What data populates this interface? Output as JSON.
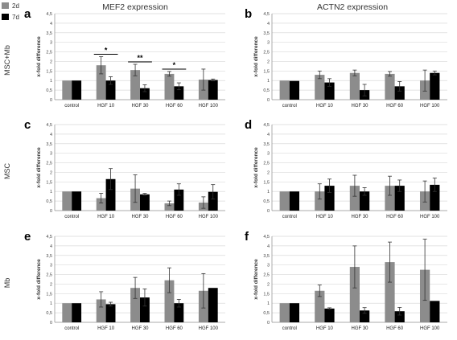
{
  "column_titles": [
    "MEF2 expression",
    "ACTN2 expression"
  ],
  "row_labels": [
    "MSC+Mb",
    "MSC",
    "Mb"
  ],
  "legend": [
    {
      "label": "2d",
      "color": "#8c8c8c"
    },
    {
      "label": "7d",
      "color": "#000000"
    }
  ],
  "colors": {
    "series_2d": "#8c8c8c",
    "series_7d": "#000000",
    "grid": "#d9d9d9"
  },
  "chart_data": [
    {
      "panel": "a",
      "type": "bar",
      "ylabel": "x-fold difference",
      "ylim": [
        0,
        4.5
      ],
      "yticks": [
        "0",
        "0,5",
        "1",
        "1,5",
        "2",
        "2,5",
        "3",
        "3,5",
        "4",
        "4,5"
      ],
      "categories": [
        "control",
        "HGF 10",
        "HGF 30",
        "HGF 60",
        "HGF 100"
      ],
      "series": [
        {
          "name": "2d",
          "values": [
            1.0,
            1.8,
            1.55,
            1.35,
            1.05
          ],
          "errors": [
            0.02,
            0.45,
            0.3,
            0.12,
            0.55
          ]
        },
        {
          "name": "7d",
          "values": [
            1.0,
            1.0,
            0.6,
            0.7,
            1.03
          ],
          "errors": [
            0.02,
            0.2,
            0.18,
            0.18,
            0.05
          ]
        }
      ],
      "significance": [
        {
          "category": "HGF 10",
          "label": "*"
        },
        {
          "category": "HGF 30",
          "label": "**"
        },
        {
          "category": "HGF 60",
          "label": "*"
        }
      ]
    },
    {
      "panel": "b",
      "type": "bar",
      "ylabel": "x-fold difference",
      "ylim": [
        0,
        4.5
      ],
      "yticks": [
        "0",
        "0,5",
        "1",
        "1,5",
        "2",
        "2,5",
        "3",
        "3,5",
        "4",
        "4,5"
      ],
      "categories": [
        "control",
        "HGF 10",
        "HGF 30",
        "HGF 60",
        "HGF 100"
      ],
      "series": [
        {
          "name": "2d",
          "values": [
            1.0,
            1.3,
            1.4,
            1.35,
            1.0
          ],
          "errors": [
            0.02,
            0.2,
            0.15,
            0.12,
            0.55
          ]
        },
        {
          "name": "7d",
          "values": [
            0.98,
            0.9,
            0.5,
            0.7,
            1.4
          ],
          "errors": [
            0.02,
            0.2,
            0.3,
            0.25,
            0.1
          ]
        }
      ]
    },
    {
      "panel": "c",
      "type": "bar",
      "ylabel": "x-fold difference",
      "ylim": [
        0,
        4.5
      ],
      "yticks": [
        "0",
        "0,5",
        "1",
        "1,5",
        "2",
        "2,5",
        "3",
        "3,5",
        "4",
        "4,5"
      ],
      "categories": [
        "control",
        "HGF 10",
        "HGF 30",
        "HGF 60",
        "HGF 100"
      ],
      "series": [
        {
          "name": "2d",
          "values": [
            1.0,
            0.65,
            1.15,
            0.38,
            0.42
          ],
          "errors": [
            0.02,
            0.25,
            0.72,
            0.12,
            0.3
          ]
        },
        {
          "name": "7d",
          "values": [
            1.0,
            1.65,
            0.85,
            1.1,
            0.98
          ],
          "errors": [
            0.02,
            0.55,
            0.05,
            0.3,
            0.38
          ]
        }
      ]
    },
    {
      "panel": "d",
      "type": "bar",
      "ylabel": "x-fold difference",
      "ylim": [
        0,
        4.5
      ],
      "yticks": [
        "0",
        "0,5",
        "1",
        "1,5",
        "2",
        "2,5",
        "3",
        "3,5",
        "4",
        "4,5"
      ],
      "categories": [
        "control",
        "HGF 10",
        "HGF 30",
        "HGF 60",
        "HGF 100"
      ],
      "series": [
        {
          "name": "2d",
          "values": [
            1.0,
            1.0,
            1.3,
            1.3,
            1.0
          ],
          "errors": [
            0.02,
            0.4,
            0.55,
            0.5,
            0.55
          ]
        },
        {
          "name": "7d",
          "values": [
            1.0,
            1.3,
            1.0,
            1.3,
            1.35
          ],
          "errors": [
            0.02,
            0.35,
            0.2,
            0.3,
            0.35
          ]
        }
      ]
    },
    {
      "panel": "e",
      "type": "bar",
      "ylabel": "x-fold difference",
      "ylim": [
        0,
        4.5
      ],
      "yticks": [
        "0",
        "0,5",
        "1",
        "1,5",
        "2",
        "2,5",
        "3",
        "3,5",
        "4",
        "4,5"
      ],
      "categories": [
        "control",
        "HGF 10",
        "HGF 30",
        "HGF 60",
        "HGF 100"
      ],
      "series": [
        {
          "name": "2d",
          "values": [
            1.0,
            1.2,
            1.8,
            2.2,
            1.65
          ],
          "errors": [
            0.02,
            0.4,
            0.55,
            0.65,
            0.9
          ]
        },
        {
          "name": "7d",
          "values": [
            1.0,
            0.95,
            1.3,
            1.0,
            1.8
          ],
          "errors": [
            0.02,
            0.1,
            0.45,
            0.2,
            0.02
          ]
        }
      ]
    },
    {
      "panel": "f",
      "type": "bar",
      "ylabel": "x-fold difference",
      "ylim": [
        0,
        4.5
      ],
      "yticks": [
        "0",
        "0,5",
        "1",
        "1,5",
        "2",
        "2,5",
        "3",
        "3,5",
        "4",
        "4,5"
      ],
      "categories": [
        "control",
        "HGF 10",
        "HGF 30",
        "HGF 60",
        "HGF 100"
      ],
      "series": [
        {
          "name": "2d",
          "values": [
            1.0,
            1.65,
            2.9,
            3.15,
            2.75
          ],
          "errors": [
            0.02,
            0.3,
            1.1,
            1.05,
            1.6
          ]
        },
        {
          "name": "7d",
          "values": [
            1.0,
            0.72,
            0.62,
            0.58,
            1.12
          ],
          "errors": [
            0.02,
            0.04,
            0.15,
            0.2,
            0.02
          ]
        }
      ]
    }
  ]
}
